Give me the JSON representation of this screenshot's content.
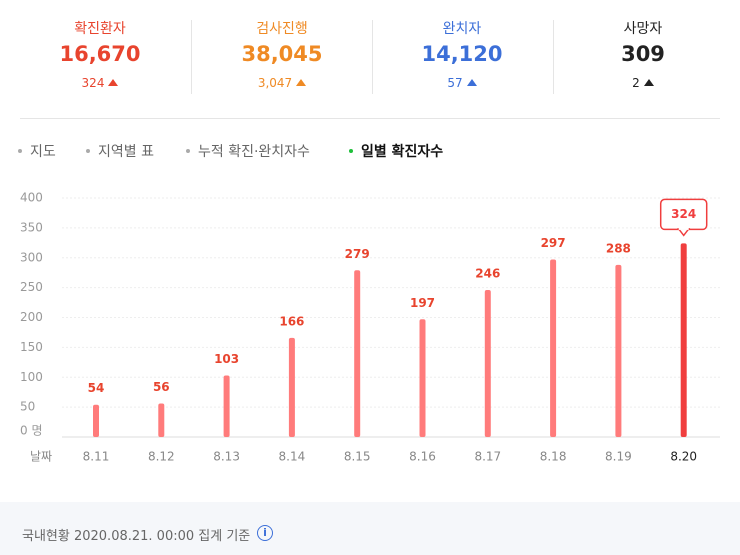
{
  "stats": [
    {
      "label": "확진환자",
      "value": "16,670",
      "delta": "324",
      "color": "#e8442e"
    },
    {
      "label": "검사진행",
      "value": "38,045",
      "delta": "3,047",
      "color": "#ef8a24"
    },
    {
      "label": "완치자",
      "value": "14,120",
      "delta": "57",
      "color": "#3c6fd8"
    },
    {
      "label": "사망자",
      "value": "309",
      "delta": "2",
      "color": "#222222"
    }
  ],
  "tabs": [
    "지도",
    "지역별 표",
    "누적 확진·완치자수",
    "일별 확진자수"
  ],
  "chart_data": {
    "type": "bar",
    "x_label": "날짜",
    "categories": [
      "8.11",
      "8.12",
      "8.13",
      "8.14",
      "8.15",
      "8.16",
      "8.17",
      "8.18",
      "8.19",
      "8.20"
    ],
    "values": [
      54,
      56,
      103,
      166,
      279,
      197,
      246,
      297,
      288,
      324
    ],
    "color": "#ff7b7b",
    "highlight_color": "#f03e3e",
    "ylim": [
      0,
      400
    ],
    "yticks": [
      {
        "value": 0,
        "label": "0 명"
      },
      50,
      100,
      150,
      200,
      250,
      300,
      350,
      400
    ],
    "grid": true
  },
  "footer": "국내현황 2020.08.21. 00:00 집계 기준"
}
